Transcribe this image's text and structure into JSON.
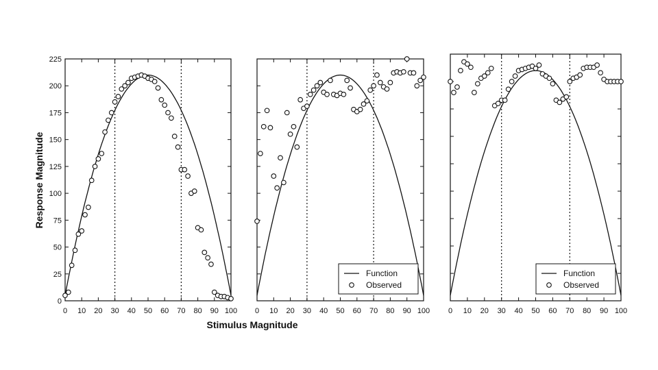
{
  "figure": {
    "xlabel": "Stimulus Magnitude",
    "ylabel": "Response Magnitude"
  },
  "chart_data": [
    {
      "type": "scatter",
      "panel": "left",
      "xlim": [
        0,
        100
      ],
      "ylim": [
        0,
        225
      ],
      "xticks": [
        0,
        10,
        20,
        30,
        40,
        50,
        60,
        70,
        80,
        90,
        100
      ],
      "yticks": [
        0,
        25,
        50,
        75,
        100,
        125,
        150,
        175,
        200,
        225
      ],
      "show_x_tick_labels": true,
      "show_y_tick_labels": true,
      "vlines": [
        30,
        70
      ],
      "legend": null,
      "series": [
        {
          "kind": "line",
          "function": "parabola",
          "vertex": [
            50,
            210
          ],
          "endpoints": [
            [
              0,
              5
            ],
            [
              100,
              5
            ]
          ]
        },
        {
          "kind": "scatter",
          "x": [
            0,
            2,
            4,
            6,
            8,
            10,
            12,
            14,
            16,
            18,
            20,
            22,
            24,
            26,
            28,
            30,
            32,
            34,
            36,
            38,
            40,
            42,
            44,
            46,
            48,
            50,
            52,
            54,
            56,
            58,
            60,
            62,
            64,
            66,
            68,
            70,
            72,
            74,
            76,
            78,
            80,
            82,
            84,
            86,
            88,
            90,
            92,
            94,
            96,
            98,
            100
          ],
          "y": [
            5,
            8,
            33,
            47,
            62,
            65,
            80,
            87,
            112,
            125,
            132,
            137,
            157,
            168,
            175,
            185,
            190,
            197,
            200,
            203,
            207,
            208,
            209,
            210,
            209,
            207,
            206,
            204,
            198,
            187,
            182,
            175,
            170,
            153,
            143,
            122,
            122,
            116,
            100,
            102,
            68,
            66,
            45,
            40,
            34,
            8,
            5,
            4,
            4,
            3,
            2
          ]
        }
      ]
    },
    {
      "type": "scatter",
      "panel": "middle",
      "xlim": [
        0,
        100
      ],
      "ylim": [
        0,
        225
      ],
      "xticks": [
        0,
        10,
        20,
        30,
        40,
        50,
        60,
        70,
        80,
        90,
        100
      ],
      "yticks": [
        0,
        25,
        50,
        75,
        100,
        125,
        150,
        175,
        200,
        225
      ],
      "show_x_tick_labels": true,
      "show_y_tick_labels": false,
      "vlines": [
        30,
        70
      ],
      "legend": {
        "position": "bottom-right",
        "entries": [
          "Function",
          "Observed"
        ]
      },
      "series": [
        {
          "kind": "line",
          "function": "parabola",
          "vertex": [
            50,
            210
          ],
          "endpoints": [
            [
              0,
              5
            ],
            [
              100,
              5
            ]
          ]
        },
        {
          "kind": "scatter",
          "x": [
            0,
            2,
            4,
            6,
            8,
            10,
            12,
            14,
            16,
            18,
            20,
            22,
            24,
            26,
            28,
            30,
            32,
            34,
            36,
            38,
            40,
            42,
            44,
            46,
            48,
            50,
            52,
            54,
            56,
            58,
            60,
            62,
            64,
            66,
            68,
            70,
            72,
            74,
            76,
            78,
            80,
            82,
            84,
            86,
            88,
            90,
            92,
            94,
            96,
            98,
            100
          ],
          "y": [
            74,
            137,
            162,
            177,
            161,
            116,
            105,
            133,
            110,
            175,
            155,
            162,
            143,
            187,
            179,
            181,
            192,
            196,
            200,
            203,
            194,
            192,
            205,
            192,
            191,
            193,
            192,
            205,
            198,
            178,
            176,
            178,
            183,
            186,
            196,
            200,
            210,
            203,
            199,
            197,
            203,
            212,
            213,
            212,
            213,
            225,
            212,
            212,
            200,
            205,
            208
          ]
        }
      ]
    },
    {
      "type": "scatter",
      "panel": "right",
      "xlim": [
        0,
        100
      ],
      "ylim": [
        0,
        225
      ],
      "xticks": [
        0,
        10,
        20,
        30,
        40,
        50,
        60,
        70,
        80,
        90,
        100
      ],
      "yticks": [
        0,
        25,
        50,
        75,
        100,
        125,
        150,
        175,
        200,
        225
      ],
      "show_x_tick_labels": true,
      "show_y_tick_labels": false,
      "vlines": [
        30,
        70
      ],
      "legend": {
        "position": "bottom-right",
        "entries": [
          "Function",
          "Observed"
        ]
      },
      "series": [
        {
          "kind": "line",
          "function": "parabola",
          "vertex": [
            50,
            210
          ],
          "endpoints": [
            [
              0,
              5
            ],
            [
              100,
              5
            ]
          ]
        },
        {
          "kind": "scatter",
          "x": [
            0,
            2,
            4,
            6,
            8,
            10,
            12,
            14,
            16,
            18,
            20,
            22,
            24,
            26,
            28,
            30,
            32,
            34,
            36,
            38,
            40,
            42,
            44,
            46,
            48,
            50,
            52,
            54,
            56,
            58,
            60,
            62,
            64,
            66,
            68,
            70,
            72,
            74,
            76,
            78,
            80,
            82,
            84,
            86,
            88,
            90,
            92,
            94,
            96,
            98,
            100
          ],
          "y": [
            200,
            190,
            195,
            210,
            218,
            216,
            213,
            190,
            198,
            203,
            205,
            208,
            212,
            178,
            180,
            183,
            183,
            193,
            200,
            205,
            210,
            211,
            212,
            213,
            214,
            212,
            215,
            207,
            205,
            203,
            198,
            183,
            181,
            184,
            186,
            200,
            203,
            204,
            206,
            212,
            213,
            213,
            213,
            215,
            208,
            202,
            200,
            200,
            200,
            200,
            200
          ]
        }
      ]
    }
  ]
}
